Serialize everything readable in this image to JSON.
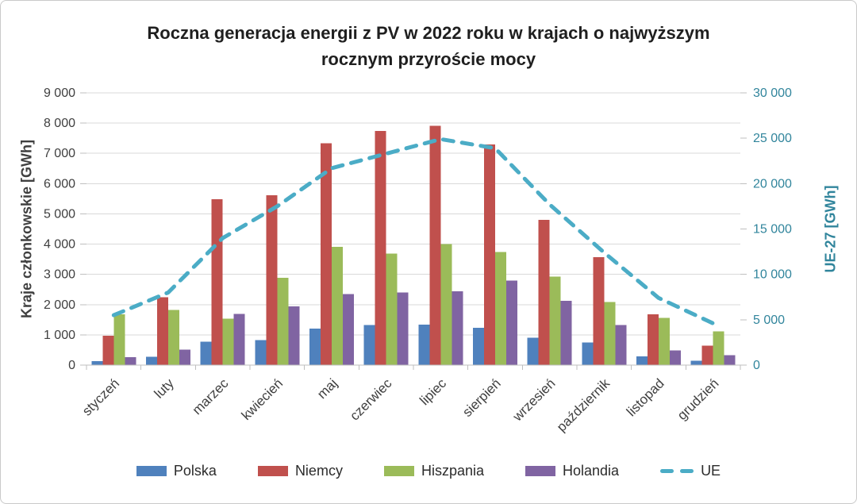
{
  "frame": {
    "background": "#ffffff",
    "border_color": "#c9c9c9"
  },
  "title_lines": [
    "Roczna generacja energii z PV w 2022 roku w krajach o najwyższym",
    "rocznym przyroście mocy"
  ],
  "chart_data": {
    "type": "bar",
    "subtype": "grouped-bars-with-dashed-line",
    "title": "Roczna generacja energii z PV w 2022 roku w krajach o najwyższym rocznym przyroście mocy",
    "categories": [
      "styczeń",
      "luty",
      "marzec",
      "kwiecień",
      "maj",
      "czerwiec",
      "lipiec",
      "sierpień",
      "wrzesień",
      "październik",
      "listopad",
      "grudzień"
    ],
    "series": [
      {
        "name": "Polska",
        "type": "bar",
        "axis": "left",
        "color": "#4F81BD",
        "values": [
          130,
          280,
          770,
          830,
          1210,
          1320,
          1340,
          1230,
          900,
          750,
          290,
          140
        ]
      },
      {
        "name": "Niemcy",
        "type": "bar",
        "axis": "left",
        "color": "#C0504D",
        "values": [
          970,
          2240,
          5490,
          5620,
          7340,
          7740,
          7910,
          7290,
          4800,
          3570,
          1680,
          640
        ]
      },
      {
        "name": "Hiszpania",
        "type": "bar",
        "axis": "left",
        "color": "#9BBB59",
        "values": [
          1680,
          1830,
          1530,
          2880,
          3910,
          3690,
          4000,
          3740,
          2930,
          2090,
          1560,
          1110
        ]
      },
      {
        "name": "Holandia",
        "type": "bar",
        "axis": "left",
        "color": "#8064A2",
        "values": [
          260,
          510,
          1690,
          1940,
          2350,
          2400,
          2440,
          2790,
          2130,
          1330,
          480,
          330
        ]
      },
      {
        "name": "UE",
        "type": "line",
        "style": "dashed",
        "axis": "right",
        "color": "#4BACC6",
        "values": [
          5500,
          8000,
          14000,
          17500,
          21700,
          23300,
          24900,
          23900,
          17700,
          12400,
          7400,
          4600
        ]
      }
    ],
    "axes": {
      "left": {
        "label": "Kraje członkowskie [GWh]",
        "min": 0,
        "max": 9000,
        "step": 1000,
        "tick_labels": [
          "0",
          "1 000",
          "2 000",
          "3 000",
          "4 000",
          "5 000",
          "6 000",
          "7 000",
          "8 000",
          "9 000"
        ],
        "text_color": "#3f3f3f"
      },
      "right": {
        "label": "UE-27 [GWh]",
        "min": 0,
        "max": 30000,
        "step": 5000,
        "tick_labels": [
          "0",
          "5 000",
          "10 000",
          "15 000",
          "20 000",
          "25 000",
          "30 000"
        ],
        "text_color": "#31859C"
      },
      "x": {
        "tick_labels": [
          "styczeń",
          "luty",
          "marzec",
          "kwiecień",
          "maj",
          "czerwiec",
          "lipiec",
          "sierpień",
          "wrzesień",
          "październik",
          "listopad",
          "grudzień"
        ],
        "text_color": "#3f3f3f",
        "label_rotation_deg": -45
      }
    },
    "grid": true,
    "gridline_color": "#D9D9D9",
    "axisline_color": "#BFBFBF",
    "legend_position": "bottom",
    "legend_entries": [
      "Polska",
      "Niemcy",
      "Hiszpania",
      "Holandia",
      "UE"
    ]
  }
}
